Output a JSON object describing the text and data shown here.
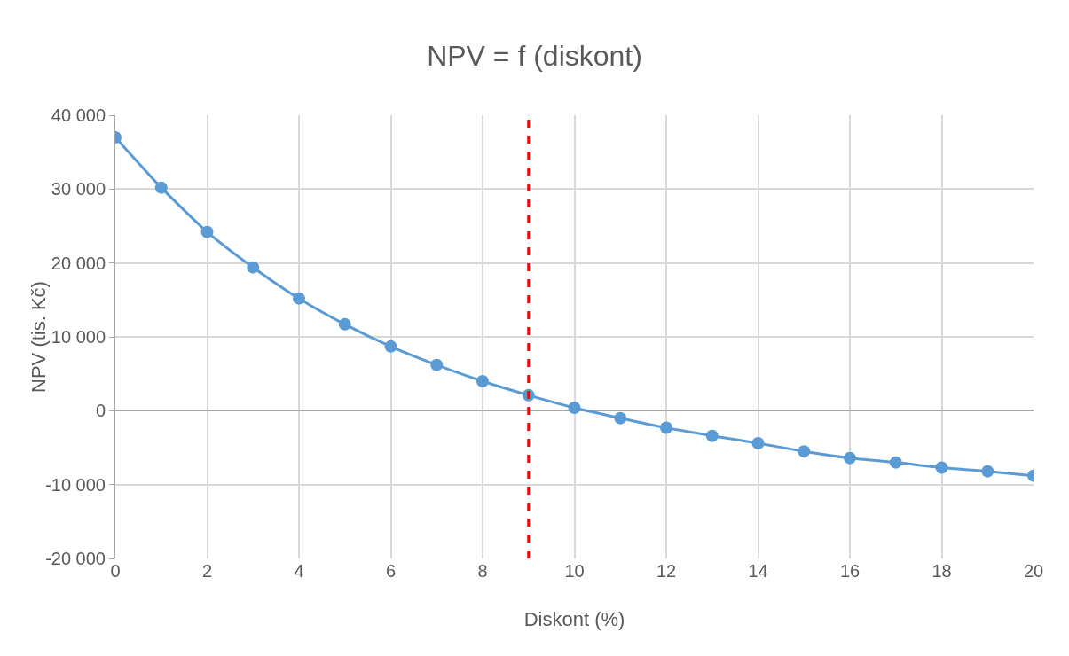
{
  "chart_data": {
    "type": "line",
    "title": "NPV = f (diskont)",
    "xlabel": "Diskont (%)",
    "ylabel": "NPV (tis. Kč)",
    "x": [
      0,
      1,
      2,
      3,
      4,
      5,
      6,
      7,
      8,
      9,
      10,
      11,
      12,
      13,
      14,
      15,
      16,
      17,
      18,
      19,
      20
    ],
    "series": [
      {
        "color": "#5b9bd5",
        "values": [
          37000,
          30200,
          24200,
          19400,
          15200,
          11700,
          8700,
          6200,
          4000,
          2100,
          400,
          -1000,
          -2300,
          -3400,
          -4400,
          -5500,
          -6400,
          -7000,
          -7700,
          -8200,
          -8800
        ]
      }
    ],
    "xlim": [
      0,
      20
    ],
    "xticks": [
      0,
      2,
      4,
      6,
      8,
      10,
      12,
      14,
      16,
      18,
      20
    ],
    "ylim": [
      -20000,
      40000
    ],
    "yticks": [
      {
        "value": -20000,
        "label": "-20 000"
      },
      {
        "value": -10000,
        "label": "-10 000"
      },
      0,
      {
        "value": 10000,
        "label": "10 000"
      },
      {
        "value": 20000,
        "label": "20 000"
      },
      {
        "value": 30000,
        "label": "30 000"
      },
      {
        "value": 40000,
        "label": "40 000"
      }
    ],
    "ref_lines": [
      {
        "axis": "x",
        "value": 9,
        "color": "#ff0000",
        "line_style": "dashed"
      }
    ],
    "grid": true,
    "marker": "circle",
    "line_style": "solid"
  }
}
